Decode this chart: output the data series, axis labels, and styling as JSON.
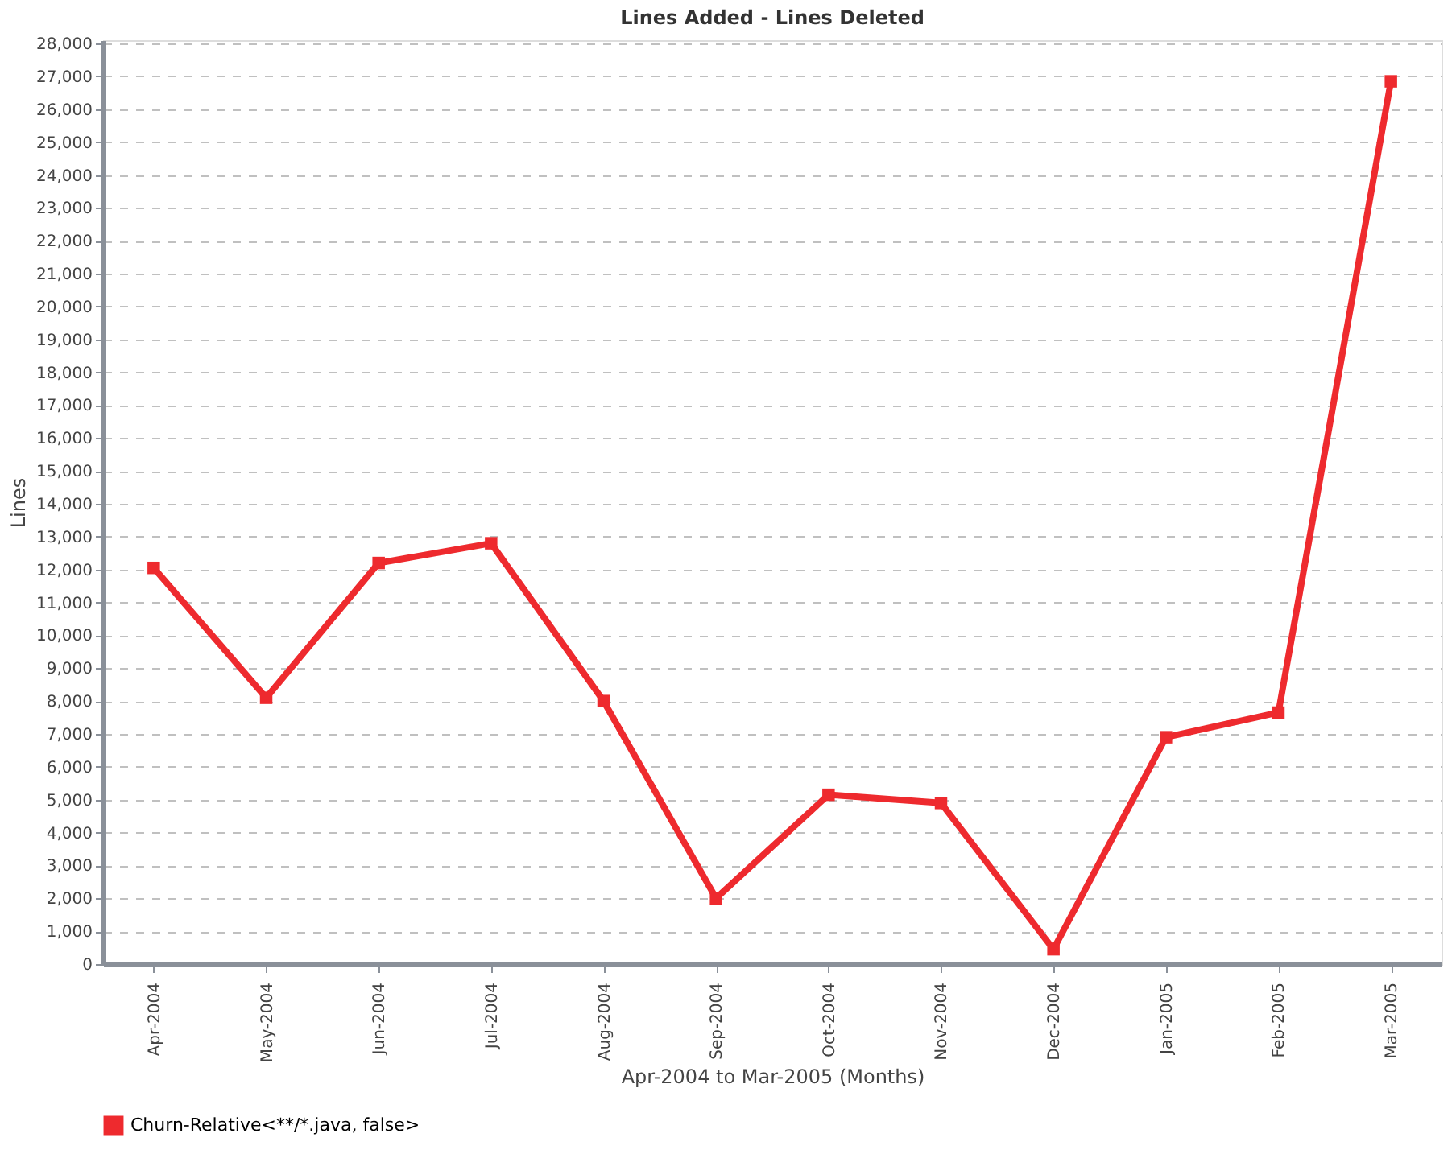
{
  "chart_data": {
    "type": "line",
    "title": "Lines Added - Lines Deleted",
    "xlabel": "Apr-2004 to Mar-2005 (Months)",
    "ylabel": "Lines",
    "categories": [
      "Apr-2004",
      "May-2004",
      "Jun-2004",
      "Jul-2004",
      "Aug-2004",
      "Sep-2004",
      "Oct-2004",
      "Nov-2004",
      "Dec-2004",
      "Jan-2005",
      "Feb-2005",
      "Mar-2005"
    ],
    "series": [
      {
        "name": "Churn-Relative<**/*.java, false>",
        "color": "#ee2a2e",
        "values": [
          12050,
          8100,
          12200,
          12800,
          8000,
          2000,
          5150,
          4900,
          450,
          6900,
          7650,
          26850
        ]
      }
    ],
    "ylim": [
      0,
      28100
    ],
    "yticks": [
      0,
      {
        "value": 1000,
        "label": "1,000"
      },
      {
        "value": 2000,
        "label": "2,000"
      },
      {
        "value": 3000,
        "label": "3,000"
      },
      {
        "value": 4000,
        "label": "4,000"
      },
      {
        "value": 5000,
        "label": "5,000"
      },
      {
        "value": 6000,
        "label": "6,000"
      },
      {
        "value": 7000,
        "label": "7,000"
      },
      {
        "value": 8000,
        "label": "8,000"
      },
      {
        "value": 9000,
        "label": "9,000"
      },
      {
        "value": 10000,
        "label": "10,000"
      },
      {
        "value": 11000,
        "label": "11,000"
      },
      {
        "value": 12000,
        "label": "12,000"
      },
      {
        "value": 13000,
        "label": "13,000"
      },
      {
        "value": 14000,
        "label": "14,000"
      },
      {
        "value": 15000,
        "label": "15,000"
      },
      {
        "value": 16000,
        "label": "16,000"
      },
      {
        "value": 17000,
        "label": "17,000"
      },
      {
        "value": 18000,
        "label": "18,000"
      },
      {
        "value": 19000,
        "label": "19,000"
      },
      {
        "value": 20000,
        "label": "20,000"
      },
      {
        "value": 21000,
        "label": "21,000"
      },
      {
        "value": 22000,
        "label": "22,000"
      },
      {
        "value": 23000,
        "label": "23,000"
      },
      {
        "value": 24000,
        "label": "24,000"
      },
      {
        "value": 25000,
        "label": "25,000"
      },
      {
        "value": 26000,
        "label": "26,000"
      },
      {
        "value": 27000,
        "label": "27,000"
      },
      {
        "value": 28000,
        "label": "28,000"
      }
    ],
    "grid": "y",
    "legend": "bottom",
    "marker": "square",
    "line_style": "solid"
  }
}
